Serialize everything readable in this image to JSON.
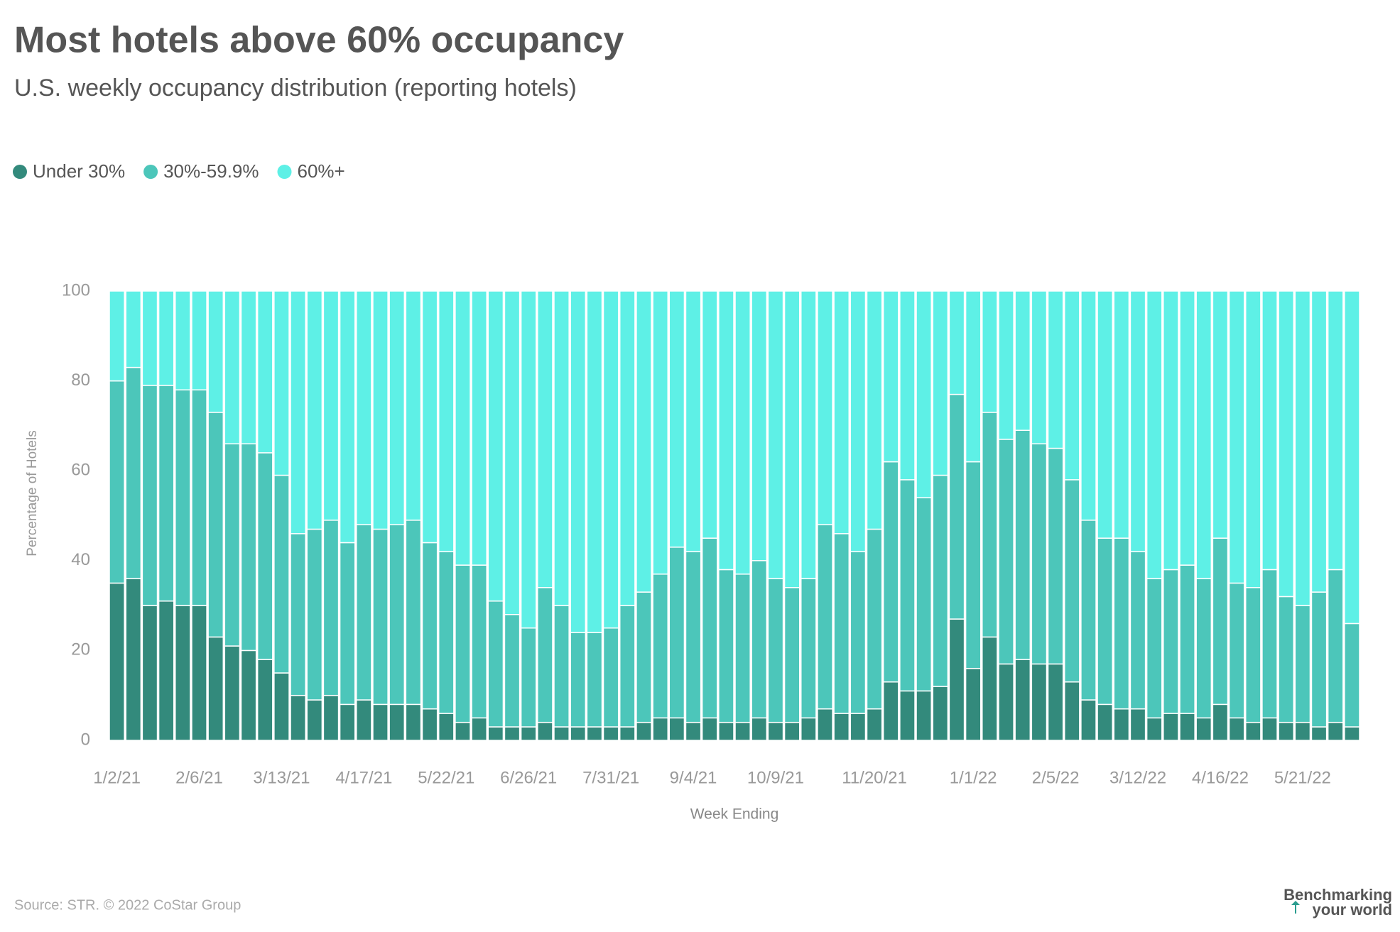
{
  "chart_data": {
    "type": "stacked_bar",
    "title": "Most hotels above 60% occupancy",
    "subtitle": "U.S. weekly occupancy distribution (reporting hotels)",
    "x_label": "Week Ending",
    "y_label": "Percentage of Hotels",
    "source": "Source: STR. © 2022 CoStar Group",
    "branding": [
      "Benchmarking",
      "your world"
    ],
    "categories": [
      "1/2/21",
      null,
      null,
      null,
      null,
      "2/6/21",
      null,
      null,
      null,
      null,
      "3/13/21",
      null,
      null,
      null,
      null,
      "4/17/21",
      null,
      null,
      null,
      null,
      "5/22/21",
      null,
      null,
      null,
      null,
      "6/26/21",
      null,
      null,
      null,
      null,
      "7/31/21",
      null,
      null,
      null,
      null,
      "9/4/21",
      null,
      null,
      null,
      null,
      "10/9/21",
      null,
      null,
      null,
      null,
      null,
      "11/20/21",
      null,
      null,
      null,
      null,
      null,
      "1/1/22",
      null,
      null,
      null,
      null,
      "2/5/22",
      null,
      null,
      null,
      null,
      "3/12/22",
      null,
      null,
      null,
      null,
      "4/16/22",
      null,
      null,
      null,
      null,
      "5/21/22",
      null,
      null,
      null
    ],
    "series": [
      {
        "name": "Under 30%",
        "color": "#338a7c",
        "values": [
          35,
          36,
          30,
          31,
          30,
          30,
          23,
          21,
          20,
          18,
          15,
          10,
          9,
          10,
          8,
          9,
          8,
          8,
          8,
          7,
          6,
          4,
          5,
          3,
          3,
          3,
          4,
          3,
          3,
          3,
          3,
          3,
          4,
          5,
          5,
          4,
          5,
          4,
          4,
          5,
          4,
          4,
          5,
          7,
          6,
          6,
          7,
          13,
          11,
          11,
          12,
          27,
          16,
          23,
          17,
          18,
          17,
          17,
          13,
          9,
          8,
          7,
          7,
          5,
          6,
          6,
          5,
          8,
          5,
          4,
          5,
          4,
          4,
          3,
          4,
          3
        ]
      },
      {
        "name": "30%-59.9%",
        "color": "#4cc6ba",
        "values": [
          45,
          47,
          49,
          48,
          48,
          48,
          50,
          45,
          46,
          46,
          44,
          36,
          38,
          39,
          36,
          39,
          39,
          40,
          41,
          37,
          36,
          35,
          34,
          28,
          25,
          22,
          30,
          27,
          21,
          21,
          22,
          27,
          29,
          32,
          38,
          38,
          40,
          34,
          33,
          35,
          32,
          30,
          31,
          41,
          40,
          36,
          40,
          49,
          47,
          43,
          47,
          50,
          46,
          50,
          50,
          51,
          49,
          48,
          45,
          40,
          37,
          38,
          35,
          31,
          32,
          33,
          31,
          37,
          30,
          30,
          33,
          28,
          26,
          30,
          34,
          23
        ]
      },
      {
        "name": "60%+",
        "color": "#5ef0e6",
        "values": [
          20,
          17,
          21,
          21,
          22,
          22,
          27,
          34,
          34,
          36,
          41,
          54,
          53,
          51,
          56,
          52,
          53,
          52,
          51,
          56,
          58,
          61,
          61,
          69,
          72,
          75,
          66,
          70,
          76,
          76,
          75,
          70,
          67,
          63,
          57,
          58,
          55,
          62,
          63,
          60,
          64,
          66,
          64,
          52,
          54,
          58,
          53,
          38,
          42,
          46,
          41,
          23,
          38,
          27,
          33,
          31,
          34,
          35,
          42,
          51,
          55,
          55,
          58,
          64,
          62,
          61,
          64,
          55,
          65,
          66,
          62,
          68,
          70,
          67,
          62,
          74
        ]
      }
    ],
    "ylim": [
      0,
      100
    ],
    "yticks": [
      0,
      20,
      40,
      60,
      80,
      100
    ],
    "grid": false
  }
}
